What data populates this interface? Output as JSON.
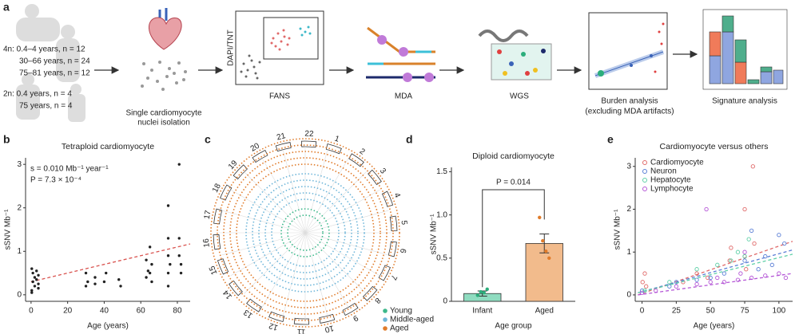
{
  "panel_labels": [
    "a",
    "b",
    "c",
    "d",
    "e"
  ],
  "workflow": {
    "cohort_4n": [
      "4n: 0.4–4 years, n = 12",
      "30–66 years, n = 24",
      "75–81 years, n = 12"
    ],
    "cohort_2n": [
      "2n: 0.4 years, n = 4",
      "75 years, n = 4"
    ],
    "fans_axis": "DAPI/TNT",
    "steps": [
      [
        "Single cardiomyocyte",
        "nuclei isolation"
      ],
      [
        "FANS"
      ],
      [
        "MDA"
      ],
      [
        "WGS"
      ],
      [
        "Burden analysis",
        "(excluding MDA artifacts)"
      ],
      [
        "Signature analysis"
      ]
    ]
  },
  "chart_data": [
    {
      "type": "scatter",
      "title": "Tetraploid cardiomyocyte",
      "xlabel": "Age (years)",
      "ylabel": "sSNV Mb⁻¹",
      "annotations": [
        "s = 0.010 Mb⁻¹ year⁻¹",
        "P = 7.3 × 10⁻⁴"
      ],
      "x": [
        0.4,
        0.4,
        1,
        1,
        2,
        2,
        3,
        3,
        4,
        4,
        4,
        0.4,
        30,
        30,
        31,
        35,
        35,
        40,
        41,
        48,
        49,
        63,
        63,
        64,
        65,
        66,
        66,
        65,
        75,
        75,
        75,
        75,
        75,
        76,
        81,
        81,
        82,
        82,
        81
      ],
      "values": [
        0.6,
        0.1,
        0.5,
        0.3,
        0.4,
        0.2,
        0.55,
        0.35,
        0.15,
        0.45,
        0.25,
        0.05,
        0.5,
        0.2,
        0.3,
        0.25,
        0.4,
        0.3,
        0.5,
        0.35,
        0.2,
        0.8,
        0.4,
        0.55,
        1.1,
        0.7,
        0.3,
        0.5,
        2.05,
        0.5,
        0.9,
        1.3,
        0.2,
        0.7,
        3.0,
        1.3,
        0.5,
        0.7,
        0.9
      ],
      "color": "#222222",
      "fit": {
        "x": [
          0,
          87
        ],
        "values": [
          0.3,
          1.17
        ],
        "color": "#d9534f"
      },
      "xlim": [
        -3,
        87
      ],
      "xticks": [
        0,
        20,
        40,
        60,
        80
      ],
      "ylim": [
        -0.15,
        3.15
      ],
      "yticks": [
        0,
        1,
        2,
        3
      ]
    },
    {
      "type": "circos",
      "categories": [
        "1",
        "2",
        "3",
        "4",
        "5",
        "6",
        "7",
        "8",
        "9",
        "10",
        "11",
        "12",
        "13",
        "14",
        "15",
        "16",
        "17",
        "18",
        "19",
        "20",
        "21",
        "22"
      ],
      "series": [
        {
          "name": "Young",
          "color": "#3cb88a"
        },
        {
          "name": "Middle-aged",
          "color": "#6fb6d9"
        },
        {
          "name": "Aged",
          "color": "#e07b2a"
        }
      ]
    },
    {
      "type": "bar",
      "title": "Diploid cardiomyocyte",
      "xlabel": "Age group",
      "ylabel": "sSNV Mb⁻¹",
      "annotation": "P = 0.014",
      "categories": [
        "Infant",
        "Aged"
      ],
      "values": [
        0.09,
        0.67
      ],
      "errors": [
        0.03,
        0.11
      ],
      "colors": [
        "#8fdcc0",
        "#f2bb8c"
      ],
      "point_colors": [
        "#2cae7c",
        "#e07b2a"
      ],
      "points": [
        [
          0.07,
          0.11,
          0.1,
          0.14
        ],
        [
          0.97,
          0.7,
          0.58,
          0.5
        ]
      ],
      "ylim": [
        0,
        1.55
      ],
      "yticks": [
        0,
        0.5,
        {
          "value": 1,
          "label": "1.0"
        },
        1.5
      ]
    },
    {
      "type": "scatter",
      "title": "Cardiomyocyte versus others",
      "xlabel": "Age (years)",
      "ylabel": "sSNV Mb⁻¹",
      "hollow": true,
      "legend": "upper left",
      "series": [
        {
          "name": "Cardiomyocyte",
          "color": "#e06a6a",
          "x": [
            0.4,
            2,
            3,
            30,
            40,
            48,
            64,
            65,
            75,
            75,
            81,
            82,
            76
          ],
          "values": [
            0.3,
            0.5,
            0.2,
            0.3,
            0.5,
            0.4,
            0.8,
            1.1,
            2.0,
            0.9,
            3.0,
            1.2,
            0.6
          ],
          "fit": {
            "x": [
              -3,
              110
            ],
            "values": [
              0.0,
              1.25
            ]
          }
        },
        {
          "name": "Neuron",
          "color": "#5b7fd6",
          "x": [
            0,
            20,
            25,
            40,
            50,
            60,
            75,
            80,
            85,
            90,
            95,
            100,
            104
          ],
          "values": [
            0.1,
            0.2,
            0.3,
            0.35,
            0.4,
            0.5,
            0.8,
            1.5,
            0.6,
            0.9,
            0.7,
            1.4,
            1.2
          ],
          "fit": {
            "x": [
              -3,
              110
            ],
            "values": [
              0.05,
              1.05
            ]
          }
        },
        {
          "name": "Hepatocyte",
          "color": "#5fd0a8",
          "x": [
            2,
            20,
            40,
            55,
            65,
            70,
            75,
            78
          ],
          "values": [
            0.1,
            0.3,
            0.6,
            0.7,
            0.8,
            1.0,
            0.9,
            1.3
          ],
          "fit": {
            "x": [
              -3,
              110
            ],
            "values": [
              0.05,
              0.95
            ]
          }
        },
        {
          "name": "Lymphocyte",
          "color": "#b455d6",
          "x": [
            0,
            10,
            25,
            40,
            50,
            55,
            60,
            70,
            72,
            75,
            80,
            90,
            100,
            105,
            47
          ],
          "values": [
            0.05,
            0.1,
            0.2,
            0.25,
            0.3,
            0.4,
            0.3,
            0.35,
            0.5,
            1.0,
            0.4,
            0.45,
            0.5,
            0.4,
            2.0
          ],
          "fit": {
            "x": [
              -3,
              110
            ],
            "values": [
              0.0,
              0.5
            ]
          }
        }
      ],
      "xlim": [
        -5,
        110
      ],
      "xticks": [
        0,
        25,
        50,
        75,
        100
      ],
      "ylim": [
        -0.15,
        3.2
      ],
      "yticks": [
        0,
        1,
        2,
        3
      ]
    }
  ]
}
